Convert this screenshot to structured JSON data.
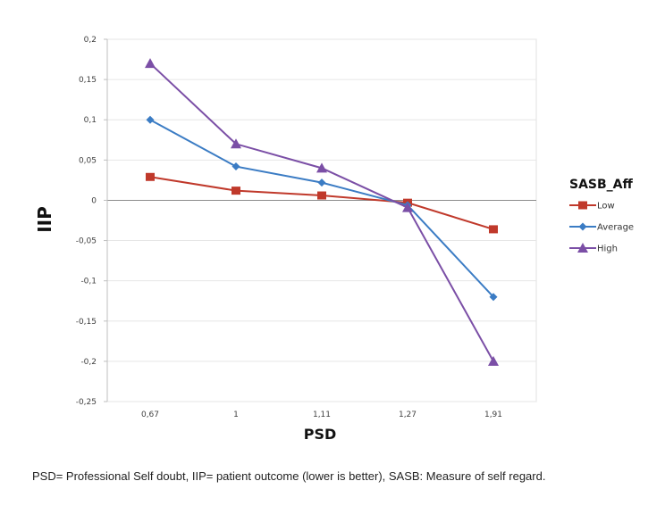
{
  "chart_data": {
    "type": "line",
    "title": "",
    "xlabel": "PSD",
    "ylabel": "IIP",
    "categories": [
      "0,67",
      "1",
      "1,11",
      "1,27",
      "1,91"
    ],
    "ylim": [
      -0.25,
      0.2
    ],
    "yticks": [
      0.2,
      0.15,
      0.1,
      0.05,
      0,
      -0.05,
      -0.1,
      -0.15,
      -0.2,
      -0.25
    ],
    "ytick_labels": [
      "0,2",
      "0,15",
      "0,1",
      "0,05",
      "0",
      "-0,05",
      "-0,1",
      "-0,15",
      "-0,2",
      "-0,25"
    ],
    "grid": true,
    "legend": {
      "title": "SASB_Aff",
      "placement": "right"
    },
    "series": [
      {
        "name": "Low",
        "color": "#c0392b",
        "marker": "square",
        "values": [
          0.029,
          0.012,
          0.006,
          -0.003,
          -0.036
        ]
      },
      {
        "name": "Average",
        "color": "#3b7cc4",
        "marker": "diamond",
        "values": [
          0.1,
          0.042,
          0.022,
          -0.006,
          -0.12
        ]
      },
      {
        "name": "High",
        "color": "#7b4fa6",
        "marker": "triangle",
        "values": [
          0.17,
          0.07,
          0.04,
          -0.009,
          -0.2
        ]
      }
    ]
  },
  "caption": "PSD= Professional Self doubt, IIP= patient outcome (lower is better), SASB: Measure of self regard."
}
